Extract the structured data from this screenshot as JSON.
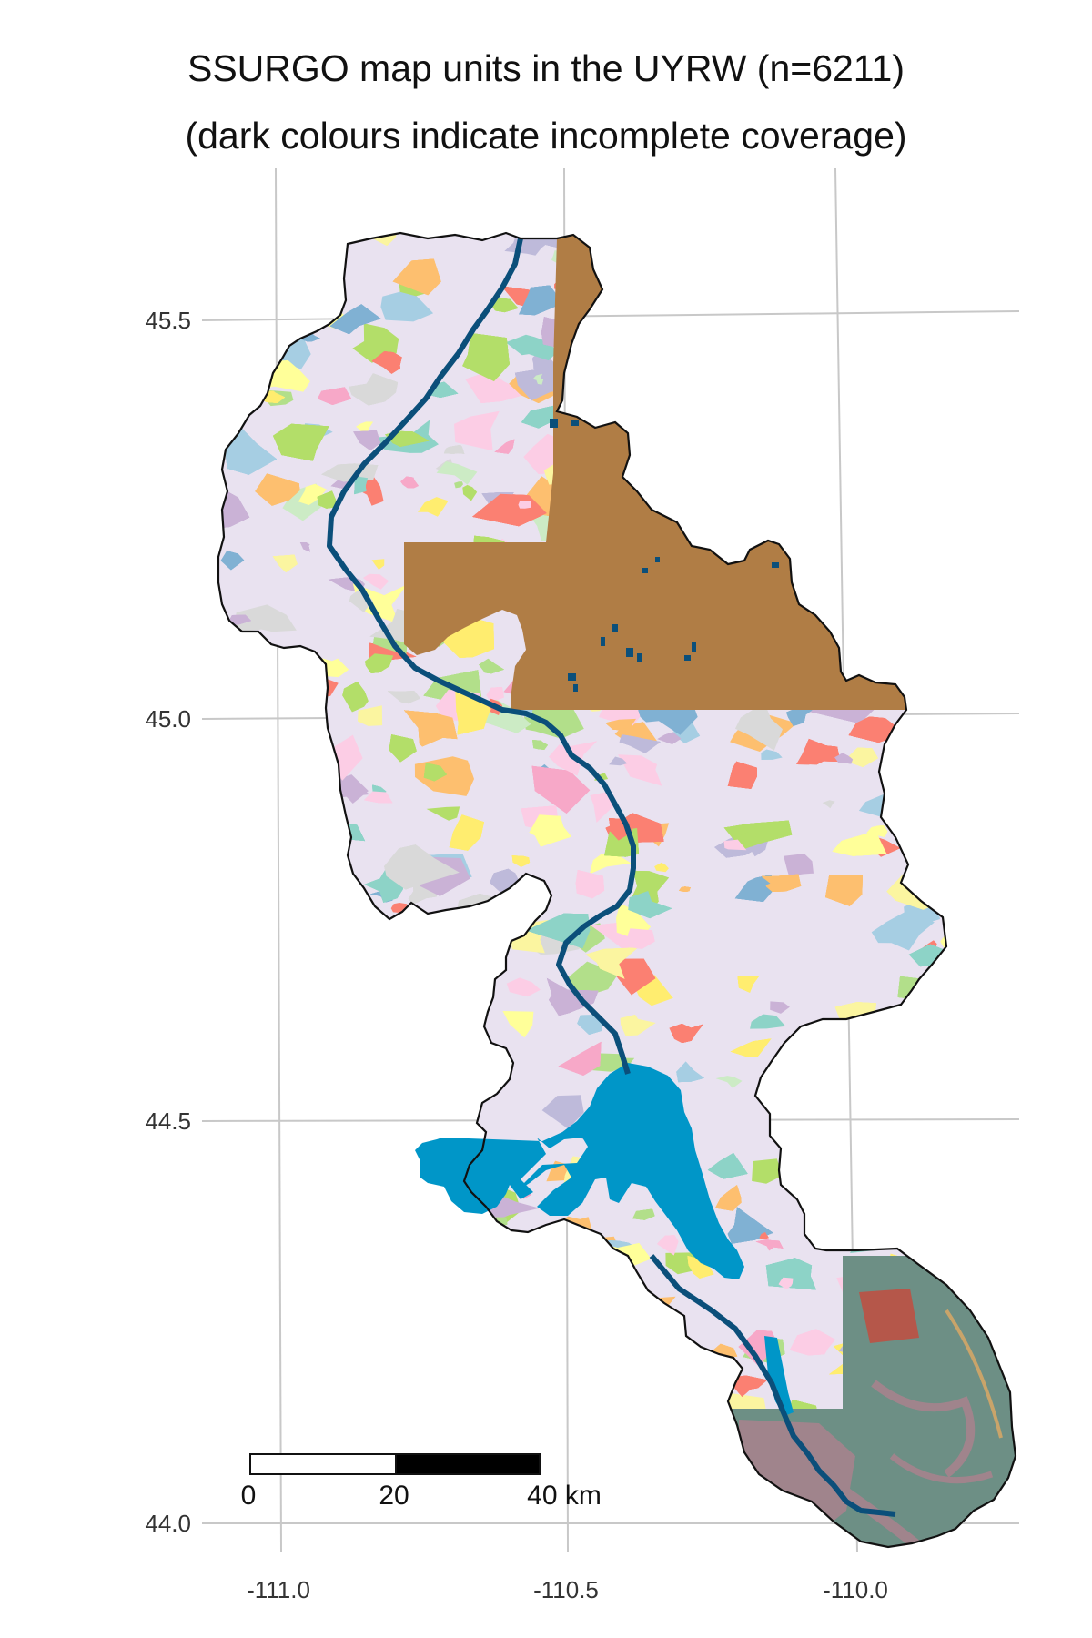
{
  "title": {
    "line1": "SSURGO map units in the UYRW (n=6211)",
    "line2": "(dark colours indicate incomplete coverage)"
  },
  "axes": {
    "y_ticks": [
      "45.5",
      "45.0",
      "44.5",
      "44.0"
    ],
    "x_ticks": [
      "-111.0",
      "-110.5",
      "-110.0"
    ],
    "grid": true
  },
  "scale_bar": {
    "labels": [
      "0",
      "20",
      "40 km"
    ]
  },
  "colors": {
    "river": "#0b4f7a",
    "lake": "#0096c8",
    "incomplete_north": "#b07d45",
    "incomplete_south": "#6d8f85",
    "incomplete_south_b": "#a0848c",
    "boundary": "#111111",
    "gridline": "#c8c8c8",
    "unit_palette": [
      "#f7a8c8",
      "#fbf5a0",
      "#a6cee3",
      "#b2df8a",
      "#fdbf6f",
      "#cab2d6",
      "#fb8072",
      "#8dd3c7",
      "#bebada",
      "#ffed6f",
      "#80b1d3",
      "#ccebc5",
      "#fccde5",
      "#d9d9d9",
      "#b3de69",
      "#ffff99"
    ]
  }
}
